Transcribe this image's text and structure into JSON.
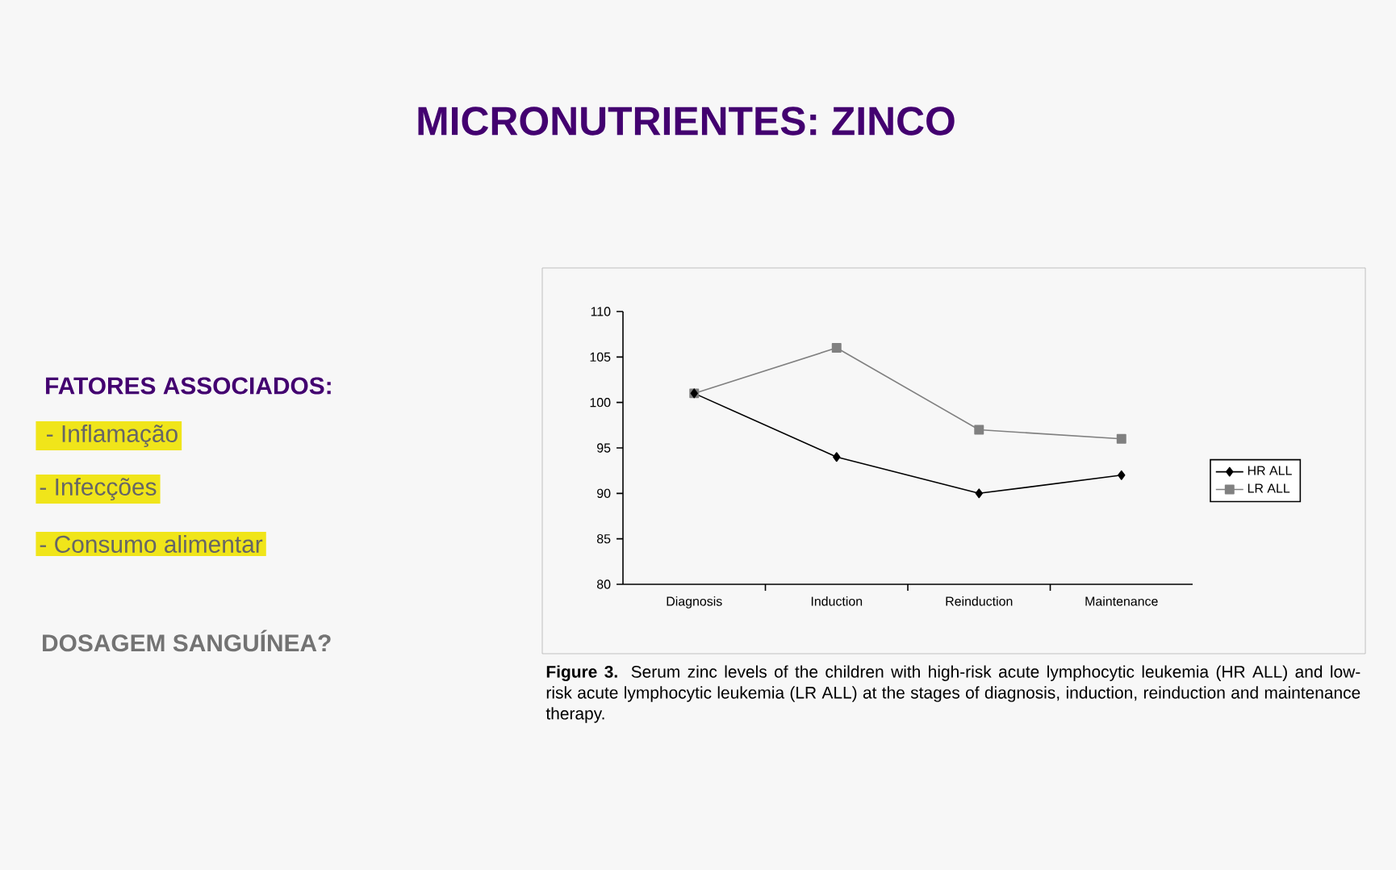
{
  "chart_data": {
    "type": "line",
    "title": "MICRONUTRIENTES: ZINCO",
    "categories": [
      "Diagnosis",
      "Induction",
      "Reinduction",
      "Maintenance"
    ],
    "series": [
      {
        "name": "HR ALL",
        "color": "#000000",
        "marker": "diamond",
        "values": [
          101,
          94,
          90,
          92
        ]
      },
      {
        "name": "LR ALL",
        "color": "#808080",
        "marker": "square",
        "values": [
          101,
          106,
          97,
          96
        ]
      }
    ],
    "ylim": [
      80,
      110
    ],
    "yticks": [
      80,
      85,
      90,
      95,
      100,
      105,
      110
    ],
    "grid": false,
    "legend": "right",
    "line_style": "solid",
    "annotations": [
      "FATORES ASSOCIADOS:",
      " - Inflamação",
      "- Infecções",
      "- Consumo alimentar",
      "DOSAGEM SANGUÍNEA?",
      "**Figure 3.** Serum zinc levels of the children with high-risk acute lymphocytic leukemia (HR ALL) and low-risk acute lymphocytic leukemia (LR ALL) at the stages of diagnosis, induction, reinduction and maintenance therapy."
    ]
  }
}
